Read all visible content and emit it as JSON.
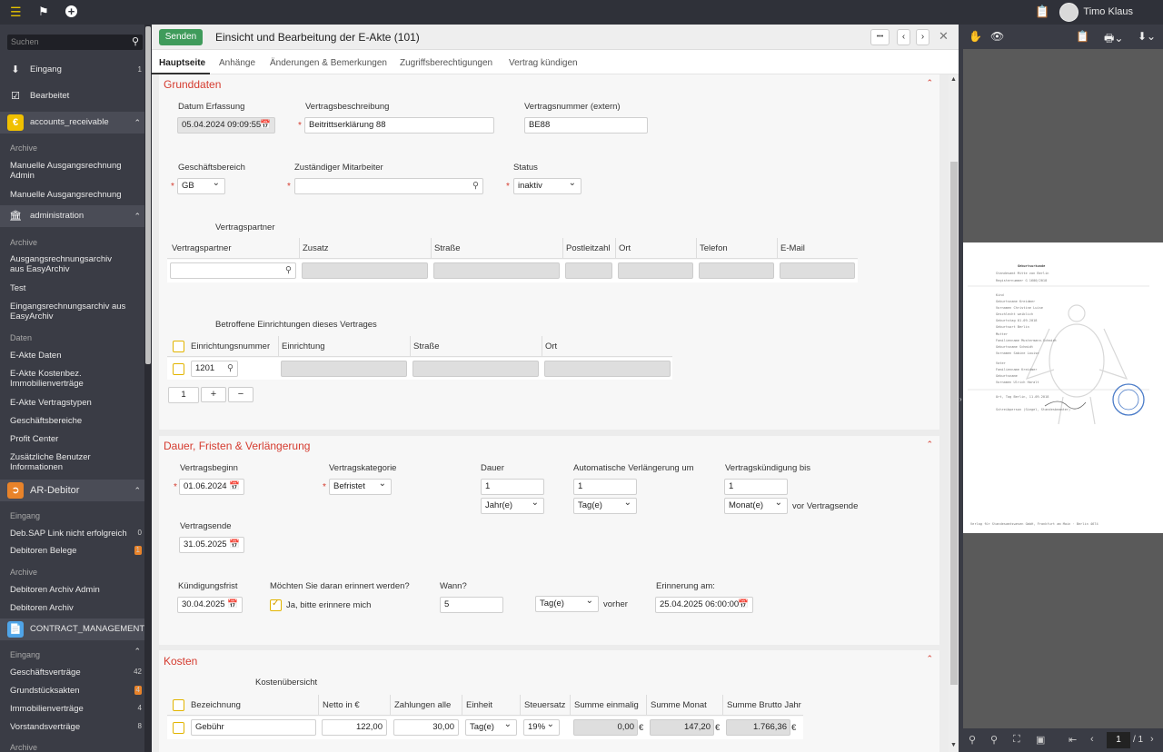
{
  "topbar": {
    "user_name": "Timo Klaus"
  },
  "sidebar": {
    "search_placeholder": "Suchen",
    "eingang": "Eingang",
    "eingang_count": "1",
    "bearbeitet": "Bearbeitet",
    "g1": "accounts_receivable",
    "g1_h1": "Archive",
    "g1_i1": "Manuelle Ausgangsrechnung Admin",
    "g1_i2": "Manuelle Ausgangsrechnung",
    "g2": "administration",
    "g2_h1": "Archive",
    "g2_i1": "Ausgangsrechnungsarchiv aus EasyArchiv",
    "g2_i2": "Test",
    "g2_i3": "Eingangsrechnungsarchiv aus EasyArchiv",
    "g2_h2": "Daten",
    "g2_i4": "E-Akte Daten",
    "g2_i5": "E-Akte Kostenbez. Immobilienverträge",
    "g2_i6": "E-Akte Vertragstypen",
    "g2_i7": "Geschäftsbereiche",
    "g2_i8": "Profit Center",
    "g2_i9": "Zusätzliche Benutzer Informationen",
    "g3": "AR-Debitor",
    "g3_h1": "Eingang",
    "g3_i1": "Deb.SAP Link nicht erfolgreich",
    "g3_i1c": "0",
    "g3_i2": "Debitoren Belege",
    "g3_i2c": "1",
    "g3_h2": "Archive",
    "g3_i3": "Debitoren Archiv Admin",
    "g3_i4": "Debitoren Archiv",
    "g4": "CONTRACT_MANAGEMENT",
    "g4_h1": "Eingang",
    "g4_i1": "Geschäftsverträge",
    "g4_i1c": "42",
    "g4_i2": "Grundstücksakten",
    "g4_i2c": "4",
    "g4_i3": "Immobilienverträge",
    "g4_i3c": "4",
    "g4_i4": "Vorstandsverträge",
    "g4_i4c": "8",
    "g4_h2": "Archive"
  },
  "header": {
    "send": "Senden",
    "title": "Einsicht und Bearbeitung der E-Akte (101)",
    "more": "•••"
  },
  "tabs": [
    "Hauptseite",
    "Anhänge",
    "Änderungen & Bemerkungen",
    "Zugriffsberechtigungen",
    "Vertrag kündigen"
  ],
  "grunddaten": {
    "title": "Grunddaten",
    "datum_label": "Datum Erfassung",
    "datum_value": "05.04.2024 09:09:55",
    "beschr_label": "Vertragsbeschreibung",
    "beschr_value": "Beitrittserklärung 88",
    "nummer_label": "Vertragsnummer (extern)",
    "nummer_value": "BE88",
    "gb_label": "Geschäftsbereich",
    "gb_value": "GB",
    "mitarbeiter_label": "Zuständiger Mitarbeiter",
    "mitarbeiter_value": "",
    "status_label": "Status",
    "status_value": "inaktiv",
    "partner_title": "Vertragspartner",
    "partner_cols": [
      "Vertragspartner",
      "Zusatz",
      "Straße",
      "Postleitzahl",
      "Ort",
      "Telefon",
      "E-Mail"
    ],
    "einr_title": "Betroffene Einrichtungen dieses Vertrages",
    "einr_cols": [
      "Einrichtungsnummer",
      "Einrichtung",
      "Straße",
      "Ort"
    ],
    "einr_row_nr": "1201",
    "page_num": "1",
    "plus": "+",
    "minus": "−"
  },
  "dauer": {
    "title": "Dauer, Fristen & Verlängerung",
    "beginn_label": "Vertragsbeginn",
    "beginn_value": "01.06.2024",
    "kat_label": "Vertragskategorie",
    "kat_value": "Befristet",
    "dauer_label": "Dauer",
    "dauer_value": "1",
    "dauer_unit": "Jahr(e)",
    "verl_label": "Automatische Verlängerung um",
    "verl_value": "1",
    "verl_unit": "Tag(e)",
    "kuend_label": "Vertragskündigung bis",
    "kuend_value": "1",
    "kuend_unit": "Monat(e)",
    "kuend_suffix": "vor Vertragsende",
    "ende_label": "Vertragsende",
    "ende_value": "31.05.2025",
    "frist_label": "Kündigungsfrist",
    "frist_value": "30.04.2025",
    "erinnern_label": "Möchten Sie daran erinnert werden?",
    "erinnern_check": "Ja, bitte erinnere mich",
    "wann_label": "Wann?",
    "wann_value": "5",
    "wann_unit": "Tag(e)",
    "wann_suffix": "vorher",
    "erinnerung_label": "Erinnerung am:",
    "erinnerung_value": "25.04.2025 06:00:00"
  },
  "kosten": {
    "title": "Kosten",
    "sub": "Kostenübersicht",
    "cols": [
      "Bezeichnung",
      "Netto in €",
      "Zahlungen alle",
      "Einheit",
      "Steuersatz",
      "Summe einmalig",
      "Summe Monat",
      "Summe Brutto Jahr"
    ],
    "row": {
      "bez": "Gebühr",
      "netto": "122,00",
      "zahl": "30,00",
      "einheit": "Tag(e)",
      "steuer": "19%",
      "einmalig": "0,00",
      "monat": "147,20",
      "jahr": "1.766,36",
      "euro": "€"
    }
  },
  "viewer": {
    "page_current": "1",
    "page_total": "/ 1",
    "doc_title": "Geburtsurkunde",
    "doc_lines": [
      "Standesamt  Mitte von Berlin",
      "Registernummer  G 1600/2018",
      "Kind",
      "Geburtsname  Kreidmer",
      "Vornamen  Christine Luise",
      "Geschlecht  weiblich",
      "Geburtstag  01.09.2018",
      "Geburtsort  Berlin",
      "Mutter",
      "Familienname  Mustermann-Schmidt",
      "Geburtsname  Schmidt",
      "Vornamen  Sabine Louise",
      "Vater",
      "Familienname  Kreidmer",
      "Geburtsname",
      "Vornamen  Ulrich Haralt",
      "Ort, Tag  Berlin, 11.09.2018",
      "Schreibperson  (Siegel, Standesbeamter)"
    ],
    "doc_footer": "Verlag für Standesamtswesen GmbH, Frankfurt am Main · Berlin 4674"
  }
}
